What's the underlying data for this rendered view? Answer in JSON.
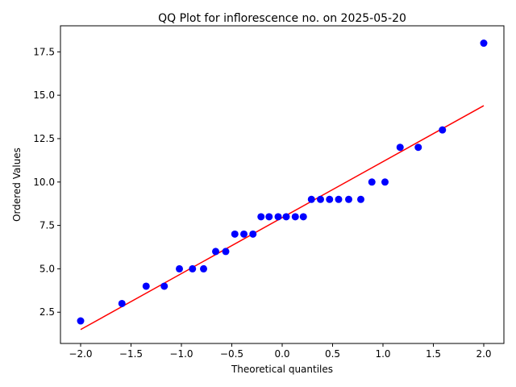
{
  "chart_data": {
    "type": "scatter",
    "title": "QQ Plot for inflorescence no. on 2025-05-20",
    "xlabel": "Theoretical quantiles",
    "ylabel": "Ordered Values",
    "xlim": [
      -2.2,
      2.2
    ],
    "ylim": [
      0.7,
      19.0
    ],
    "xticks": [
      -2.0,
      -1.5,
      -1.0,
      -0.5,
      0.0,
      0.5,
      1.0,
      1.5,
      2.0
    ],
    "xtick_labels": [
      "−2.0",
      "−1.5",
      "−1.0",
      "−0.5",
      "0.0",
      "0.5",
      "1.0",
      "1.5",
      "2.0"
    ],
    "yticks": [
      2.5,
      5.0,
      7.5,
      10.0,
      12.5,
      15.0,
      17.5
    ],
    "ytick_labels": [
      "2.5",
      "5.0",
      "7.5",
      "10.0",
      "12.5",
      "15.0",
      "17.5"
    ],
    "grid": false,
    "series": [
      {
        "type": "scatter",
        "color": "#0000ff",
        "x": [
          -2.0,
          -1.59,
          -1.35,
          -1.17,
          -1.02,
          -0.89,
          -0.78,
          -0.66,
          -0.56,
          -0.47,
          -0.38,
          -0.29,
          -0.21,
          -0.13,
          -0.04,
          0.04,
          0.13,
          0.21,
          0.29,
          0.38,
          0.47,
          0.56,
          0.66,
          0.78,
          0.89,
          1.02,
          1.17,
          1.35,
          1.59,
          2.0
        ],
        "y": [
          2,
          3,
          4,
          4,
          5,
          5,
          5,
          6,
          6,
          7,
          7,
          7,
          8,
          8,
          8,
          8,
          8,
          8,
          9,
          9,
          9,
          9,
          9,
          9,
          10,
          10,
          12,
          12,
          13,
          18
        ]
      },
      {
        "type": "line",
        "color": "#ff0000",
        "x": [
          -2.0,
          2.0
        ],
        "y": [
          1.5,
          14.4
        ]
      }
    ]
  }
}
